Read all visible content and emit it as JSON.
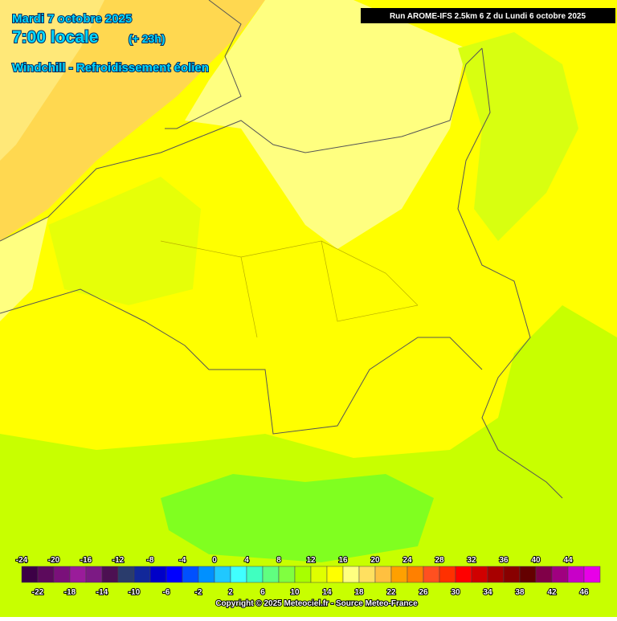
{
  "header": {
    "date": "Mardi 7 octobre 2025",
    "time": "7:00 locale",
    "lead": "(+ 23h)",
    "parameter": "Windchill - Refroidissement éolien"
  },
  "run_info": "Run AROME-IFS 2.5km 6 Z du Lundi 6 octobre 2025",
  "legend": {
    "ticks": [
      -24,
      -22,
      -20,
      -18,
      -16,
      -14,
      -12,
      -10,
      -8,
      -6,
      -4,
      -2,
      0,
      2,
      4,
      6,
      8,
      10,
      12,
      14,
      16,
      18,
      20,
      22,
      24,
      26,
      28,
      30,
      32,
      34,
      36,
      38,
      40,
      42,
      44,
      46
    ],
    "colors": [
      "#3c0046",
      "#5c0a5c",
      "#7a107a",
      "#9a1c9a",
      "#7c1a84",
      "#4c1052",
      "#2a3c6c",
      "#12289a",
      "#0000c8",
      "#0000ff",
      "#0050ff",
      "#0090ff",
      "#20c8ff",
      "#40ffff",
      "#40ffc0",
      "#60ff80",
      "#80ff40",
      "#a8ff00",
      "#e0ff00",
      "#ffff00",
      "#ffff80",
      "#ffe060",
      "#ffc040",
      "#ffa000",
      "#ff8000",
      "#ff5020",
      "#ff3000",
      "#ff0000",
      "#d00000",
      "#a80000",
      "#880000",
      "#640000",
      "#800048",
      "#a00080",
      "#c800c8",
      "#e800e8"
    ]
  },
  "copyright": "Copyright © 2025 Meteociel.fr - Source Meteo-France"
}
